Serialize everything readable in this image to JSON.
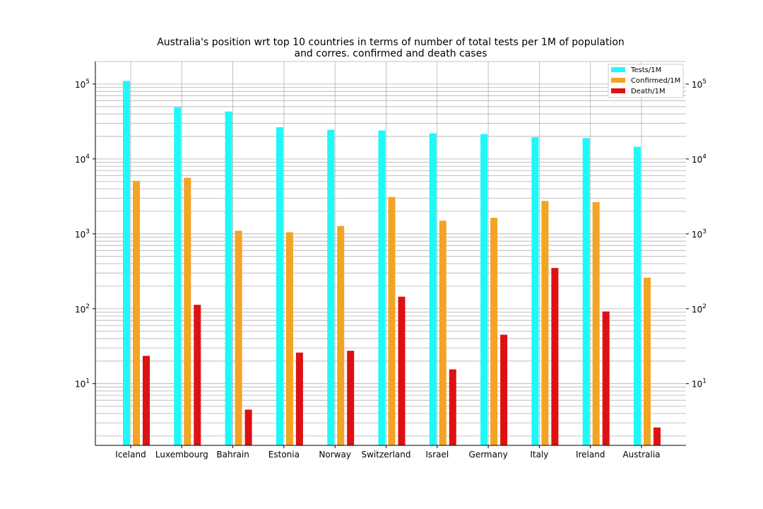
{
  "chart_data": {
    "type": "bar",
    "title": [
      "Australia's position wrt top 10 countries in terms of number of total tests per 1M of population",
      "and corres. confirmed and death cases"
    ],
    "xlabel": "",
    "ylabel": "",
    "yscale": "log",
    "ylim": [
      1.5,
      200000
    ],
    "grid": true,
    "legend_position": "top-right",
    "categories": [
      "Iceland",
      "Luxembourg",
      "Bahrain",
      "Estonia",
      "Norway",
      "Switzerland",
      "Israel",
      "Germany",
      "Italy",
      "Ireland",
      "Australia"
    ],
    "series": [
      {
        "name": "Tests/1M",
        "color": "#1ff8f8",
        "values": [
          110000,
          49000,
          43000,
          26500,
          24500,
          24000,
          22000,
          21500,
          19500,
          19000,
          14500
        ]
      },
      {
        "name": "Confirmed/1M",
        "color": "#f2a424",
        "values": [
          5100,
          5600,
          1100,
          1050,
          1270,
          3100,
          1500,
          1640,
          2750,
          2650,
          260
        ]
      },
      {
        "name": "Death/1M",
        "color": "#dd1111",
        "values": [
          23.5,
          113,
          4.5,
          26,
          27.5,
          145,
          15.5,
          45,
          350,
          92,
          2.6
        ]
      }
    ],
    "y_ticks": [
      {
        "value": 10,
        "base": "10",
        "exp": "1"
      },
      {
        "value": 100,
        "base": "10",
        "exp": "2"
      },
      {
        "value": 1000,
        "base": "10",
        "exp": "3"
      },
      {
        "value": 10000,
        "base": "10",
        "exp": "4"
      },
      {
        "value": 100000,
        "base": "10",
        "exp": "5"
      }
    ]
  }
}
